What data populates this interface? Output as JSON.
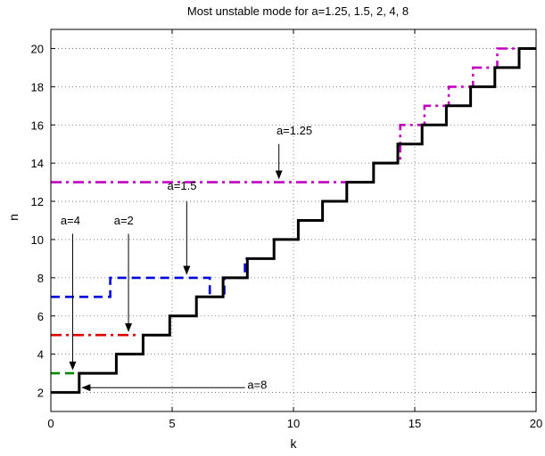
{
  "chart_data": {
    "type": "line",
    "title": "Most unstable mode for a=1.25, 1.5, 2, 4, 8",
    "xlabel": "k",
    "ylabel": "n",
    "xlim": [
      0,
      20
    ],
    "ylim": [
      1,
      21
    ],
    "xticks": [
      0,
      5,
      10,
      15,
      20
    ],
    "yticks": [
      2,
      4,
      6,
      8,
      10,
      12,
      14,
      16,
      18,
      20
    ],
    "grid": true,
    "series": [
      {
        "name": "a=1.25",
        "color": "#bf00bf",
        "style": "dash-dot",
        "x": [
          0,
          13.3,
          13.3,
          14.4,
          14.4,
          15.4,
          15.4,
          16.4,
          16.4,
          17.4,
          17.4,
          18.4,
          18.4,
          19.4,
          19.4,
          20
        ],
        "y": [
          13,
          13,
          14,
          14,
          16,
          16,
          17,
          17,
          18,
          18,
          19,
          19,
          20,
          20,
          20,
          20
        ]
      },
      {
        "name": "a=1.5",
        "color": "#0000dd",
        "style": "dashed",
        "x": [
          0,
          2.45,
          2.45,
          6.55,
          6.55,
          7.15,
          7.15,
          8.0,
          8.0,
          8.1
        ],
        "y": [
          7,
          7,
          8,
          8,
          7,
          7,
          8,
          8,
          9,
          9
        ]
      },
      {
        "name": "a=2",
        "color": "#dd0000",
        "style": "dash-dot",
        "x": [
          0,
          3.6
        ],
        "y": [
          5,
          5
        ]
      },
      {
        "name": "a=4",
        "color": "#008800",
        "style": "dashed",
        "x": [
          0,
          1.1
        ],
        "y": [
          3,
          3
        ]
      },
      {
        "name": "a=8",
        "color": "#000000",
        "style": "solid",
        "x": [
          0,
          1.17,
          1.17,
          2.7,
          2.7,
          3.8,
          3.8,
          4.9,
          4.9,
          6.0,
          6.0,
          7.1,
          7.1,
          8.1,
          8.1,
          9.2,
          9.2,
          10.2,
          10.2,
          11.2,
          11.2,
          12.2,
          12.2,
          13.3,
          13.3,
          14.3,
          14.3,
          15.3,
          15.3,
          16.3,
          16.3,
          17.3,
          17.3,
          18.3,
          18.3,
          19.3,
          19.3,
          20
        ],
        "y": [
          2,
          2,
          3,
          3,
          4,
          4,
          5,
          5,
          6,
          6,
          7,
          7,
          8,
          8,
          9,
          9,
          10,
          10,
          11,
          11,
          12,
          12,
          13,
          13,
          14,
          14,
          15,
          15,
          16,
          16,
          17,
          17,
          18,
          18,
          19,
          19,
          20,
          20
        ]
      }
    ],
    "annotations": [
      {
        "text": "a=1.25",
        "text_x": 9.3,
        "text_y": 15.5,
        "text_anchor": "start",
        "arrow_from": [
          9.4,
          15.0
        ],
        "arrow_to": [
          9.4,
          13.2
        ]
      },
      {
        "text": "a=1.5",
        "text_x": 4.8,
        "text_y": 12.6,
        "text_anchor": "start",
        "arrow_from": [
          5.6,
          12.0
        ],
        "arrow_to": [
          5.6,
          8.2
        ]
      },
      {
        "text": "a=2",
        "text_x": 2.6,
        "text_y": 10.8,
        "text_anchor": "start",
        "arrow_from": [
          3.2,
          10.3
        ],
        "arrow_to": [
          3.2,
          5.2
        ]
      },
      {
        "text": "a=4",
        "text_x": 0.4,
        "text_y": 10.8,
        "text_anchor": "start",
        "arrow_from": [
          0.9,
          10.3
        ],
        "arrow_to": [
          0.9,
          3.2
        ]
      },
      {
        "text": "a=8",
        "text_x": 8.1,
        "text_y": 2.2,
        "text_anchor": "start",
        "arrow_from": [
          8.0,
          2.25
        ],
        "arrow_to": [
          1.3,
          2.25
        ]
      }
    ]
  }
}
